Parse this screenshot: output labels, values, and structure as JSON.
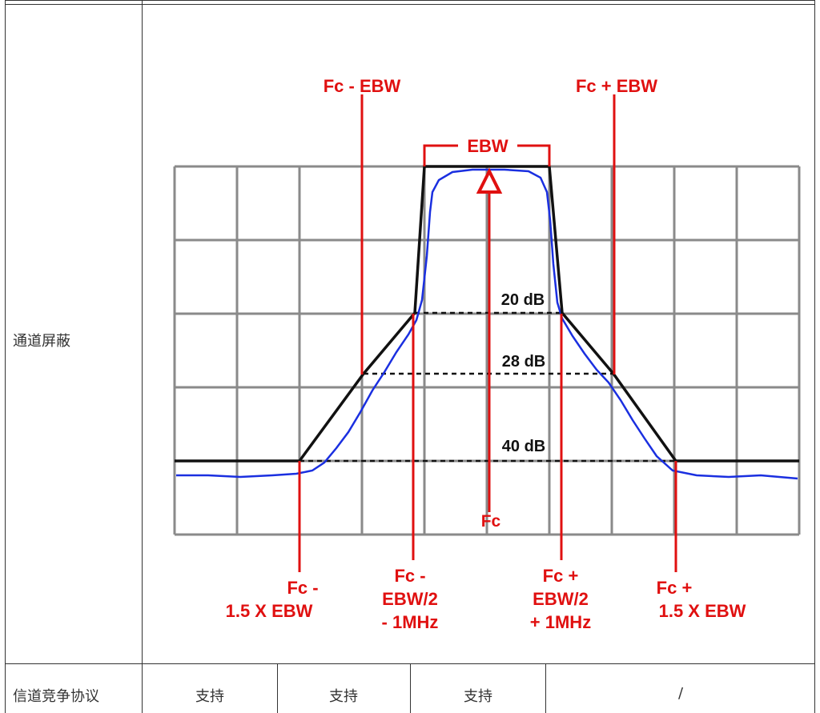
{
  "row1": {
    "label": "通道屏蔽"
  },
  "row2": {
    "label": "信道竞争协议",
    "cells": [
      "支持",
      "支持",
      "支持",
      "/"
    ]
  },
  "figure": {
    "labels": {
      "fc_minus_ebw": "Fc - EBW",
      "fc_plus_ebw": "Fc + EBW",
      "ebw": "EBW",
      "db20": "20 dB",
      "db28": "28 dB",
      "db40": "40 dB",
      "fc": "Fc",
      "fc_minus_1_5_line1": "Fc -",
      "fc_minus_1_5_line2": "1.5 X EBW",
      "fc_minus_half_line1": "Fc -",
      "fc_minus_half_line2": "EBW/2",
      "fc_minus_half_line3": "- 1MHz",
      "fc_plus_half_line1": "Fc +",
      "fc_plus_half_line2": "EBW/2",
      "fc_plus_half_line3": "+ 1MHz",
      "fc_plus_1_5_line1": "Fc +",
      "fc_plus_1_5_line2": "1.5 X EBW"
    },
    "colors": {
      "annotation": "#e01010",
      "mask": "#111111",
      "trace": "#1a2fe0",
      "grid": "#8a8a8a"
    }
  }
}
